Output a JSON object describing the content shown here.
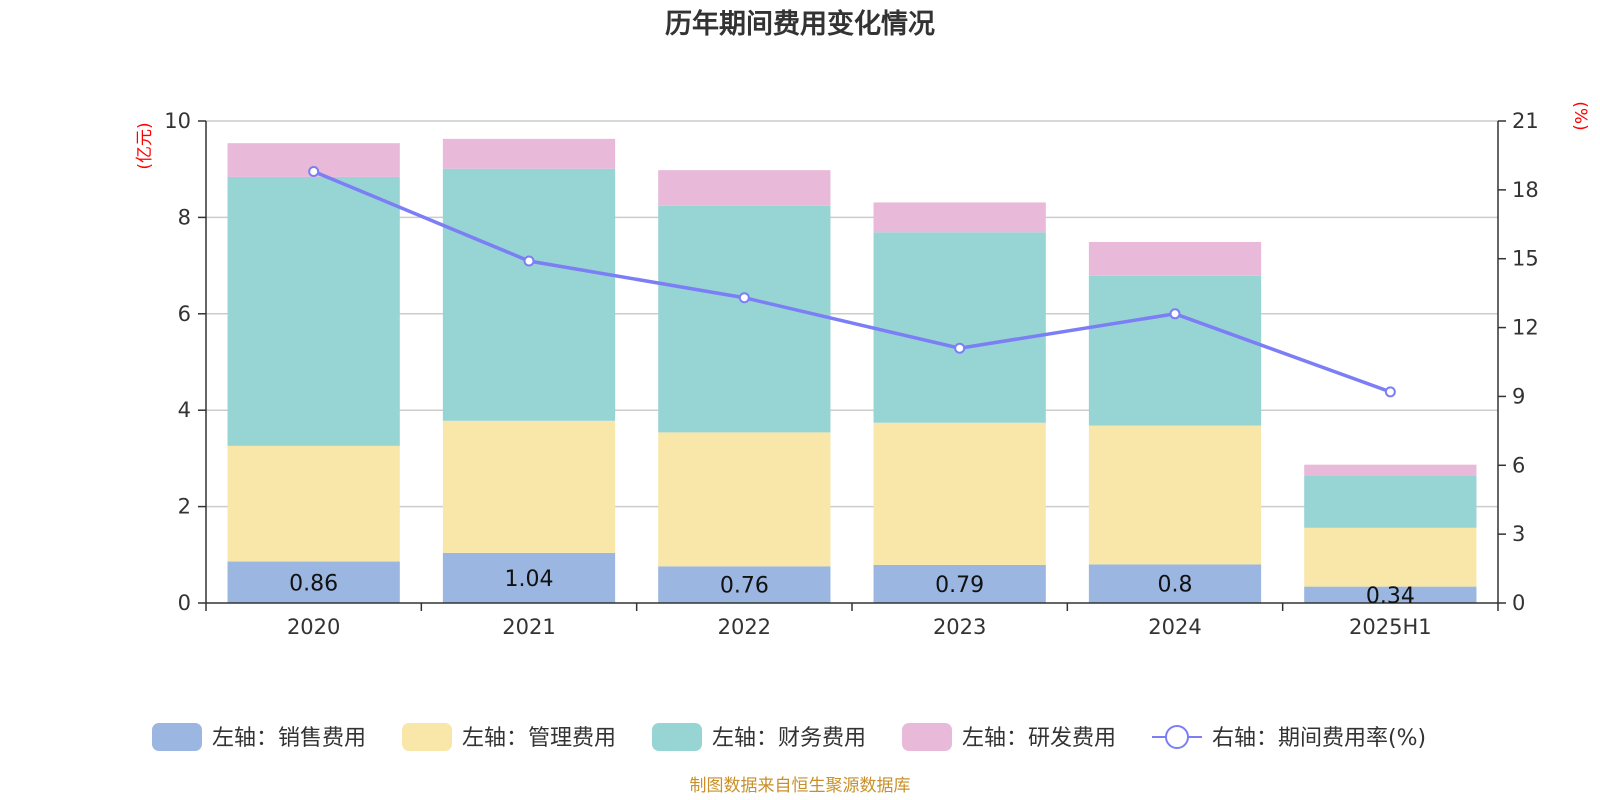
{
  "chart_data": {
    "type": "bar",
    "title": "历年期间费用变化情况",
    "left_axis_unit": "(亿元)",
    "right_axis_unit": "(%)",
    "categories": [
      "2020",
      "2021",
      "2022",
      "2023",
      "2024",
      "2025H1"
    ],
    "ylim": [
      0,
      10
    ],
    "y_ticks": [
      0,
      2,
      4,
      6,
      8,
      10
    ],
    "y2lim": [
      0,
      21
    ],
    "y2_ticks": [
      0,
      3,
      6,
      9,
      12,
      15,
      18,
      21
    ],
    "grid": true,
    "legend_position": "bottom",
    "series": [
      {
        "name": "左轴：销售费用",
        "axis": "left",
        "kind": "stacked-bar",
        "color": "#9bb6e0",
        "values": [
          0.86,
          1.04,
          0.76,
          0.79,
          0.8,
          0.34
        ],
        "labels": [
          "0.86",
          "1.04",
          "0.76",
          "0.79",
          "0.8",
          "0.34"
        ]
      },
      {
        "name": "左轴：管理费用",
        "axis": "left",
        "kind": "stacked-bar",
        "color": "#f8e7a9",
        "values": [
          2.4,
          2.74,
          2.78,
          2.95,
          2.88,
          1.22
        ]
      },
      {
        "name": "左轴：财务费用",
        "axis": "left",
        "kind": "stacked-bar",
        "color": "#97d4d4",
        "values": [
          5.58,
          5.23,
          4.7,
          3.95,
          3.11,
          1.09
        ]
      },
      {
        "name": "左轴：研发费用",
        "axis": "left",
        "kind": "stacked-bar",
        "color": "#e8b9d9",
        "values": [
          0.7,
          0.62,
          0.74,
          0.62,
          0.7,
          0.22
        ]
      },
      {
        "name": "右轴：期间费用率(%)",
        "axis": "right",
        "kind": "line",
        "color": "#7b7ef5",
        "values": [
          18.8,
          14.9,
          13.3,
          11.1,
          12.6,
          9.2
        ]
      }
    ]
  },
  "footer": {
    "source": "制图数据来自恒生聚源数据库"
  }
}
